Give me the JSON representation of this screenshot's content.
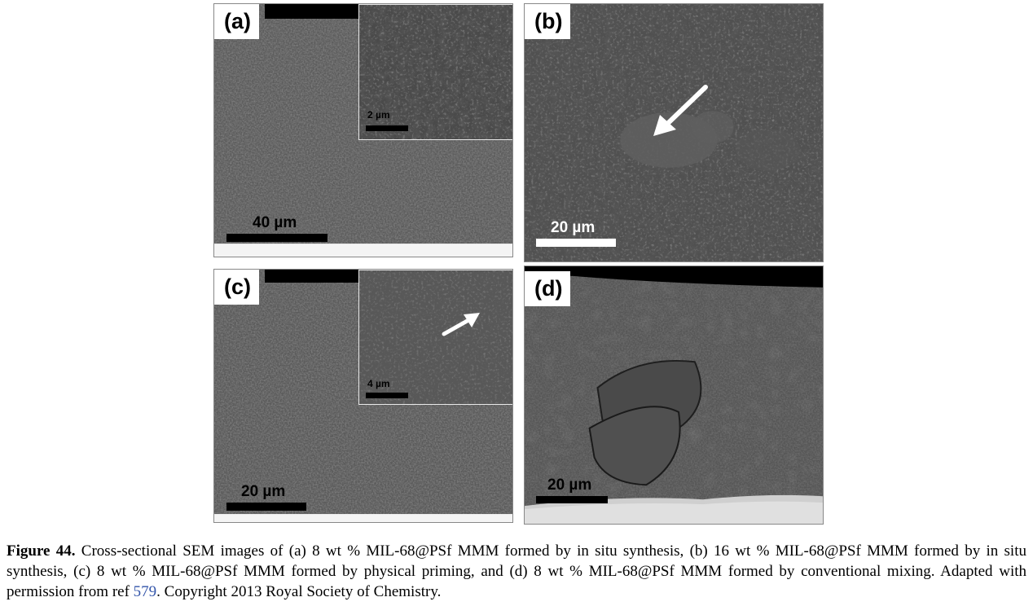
{
  "panels": {
    "a": {
      "label": "(a)",
      "scale": "40 µm",
      "inset_scale": "2 µm"
    },
    "b": {
      "label": "(b)",
      "scale": "20 µm"
    },
    "c": {
      "label": "(c)",
      "scale": "20 µm",
      "inset_scale": "4 µm"
    },
    "d": {
      "label": "(d)",
      "scale": "20 µm"
    }
  },
  "caption": {
    "fig_label": "Figure 44.",
    "text_before_ref": " Cross-sectional SEM images of (a) 8 wt % MIL-68@PSf MMM formed by in situ synthesis, (b) 16 wt % MIL-68@PSf MMM formed by in situ synthesis, (c) 8 wt % MIL-68@PSf MMM formed by physical priming, and (d) 8 wt % MIL-68@PSf MMM formed by conventional mixing. Adapted with permission from ref ",
    "ref": "579",
    "text_after_ref": ". Copyright 2013 Royal Society of Chemistry."
  },
  "colors": {
    "link": "#3355aa"
  }
}
